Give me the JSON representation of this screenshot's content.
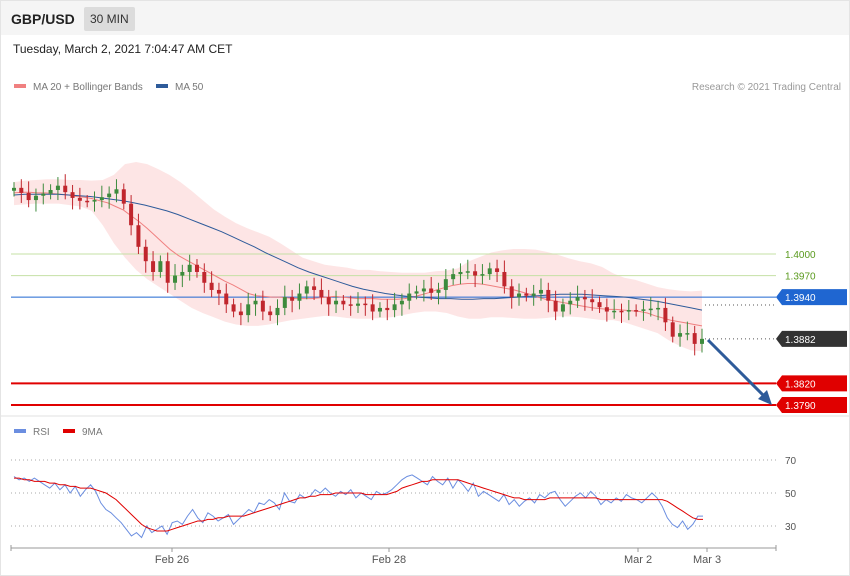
{
  "header": {
    "pair": "GBP/USD",
    "timeframe": "30 MIN"
  },
  "datetime": "Tuesday, March 2, 2021 7:04:47 AM CET",
  "legend": {
    "ma20_bb": "MA 20 + Bollinger Bands",
    "ma50": "MA 50",
    "credit": "Research © 2021 Trading Central"
  },
  "rsi_legend": {
    "rsi": "RSI",
    "ma9": "9MA"
  },
  "colors": {
    "bull": "#3d8b3d",
    "bear": "#c0262d",
    "ma20": "#f08080",
    "band": "#fde2e2",
    "ma50": "#2e5b9a",
    "level_green": "#c5e0a5",
    "level_blue": "#1f66d1",
    "level_red": "#e00000",
    "current": "#333333",
    "arrow": "#2e5b9a",
    "rsi": "#6b8ee0",
    "rsi_ma": "#e00000"
  },
  "chart_data": [
    {
      "type": "candlestick",
      "title": "GBP/USD",
      "xlabel": "",
      "ylabel": "",
      "ylim": [
        1.3745,
        1.4145
      ],
      "x_ticks": [
        "Feb 26",
        "Feb 28",
        "Mar 2",
        "Mar 3"
      ],
      "grid": false,
      "levels": [
        {
          "value": 1.4,
          "label": "1.4000",
          "kind": "resistance"
        },
        {
          "value": 1.397,
          "label": "1.3970",
          "kind": "resistance"
        },
        {
          "value": 1.394,
          "label": "1.3940",
          "kind": "pivot"
        },
        {
          "value": 1.3882,
          "label": "1.3882",
          "kind": "current"
        },
        {
          "value": 1.382,
          "label": "1.3820",
          "kind": "support"
        },
        {
          "value": 1.379,
          "label": "1.3790",
          "kind": "support"
        }
      ],
      "close": [
        1.4092,
        1.4085,
        1.4075,
        1.4081,
        1.4084,
        1.4089,
        1.4095,
        1.4086,
        1.4078,
        1.4074,
        1.4073,
        1.4075,
        1.4079,
        1.4084,
        1.409,
        1.407,
        1.404,
        1.401,
        1.399,
        1.3975,
        1.399,
        1.396,
        1.397,
        1.3975,
        1.3985,
        1.3975,
        1.396,
        1.395,
        1.3945,
        1.393,
        1.392,
        1.3915,
        1.393,
        1.3935,
        1.392,
        1.3915,
        1.3925,
        1.394,
        1.3935,
        1.3945,
        1.3955,
        1.395,
        1.394,
        1.393,
        1.3935,
        1.393,
        1.3928,
        1.3931,
        1.393,
        1.392,
        1.3925,
        1.3922,
        1.393,
        1.3935,
        1.3945,
        1.3948,
        1.3952,
        1.3946,
        1.395,
        1.3965,
        1.3972,
        1.3975,
        1.3976,
        1.397,
        1.3972,
        1.398,
        1.3975,
        1.3955,
        1.394,
        1.3945,
        1.3942,
        1.3945,
        1.395,
        1.3935,
        1.392,
        1.393,
        1.3935,
        1.394,
        1.3937,
        1.3933,
        1.3926,
        1.392,
        1.3921,
        1.392,
        1.3922,
        1.3921,
        1.3923,
        1.3924,
        1.3925,
        1.3905,
        1.3885,
        1.389,
        1.389,
        1.3875,
        1.3882
      ],
      "ma20": [
        1.4085,
        1.4086,
        1.4086,
        1.4085,
        1.4085,
        1.4084,
        1.4083,
        1.4082,
        1.408,
        1.4079,
        1.4077,
        1.4074,
        1.4071,
        1.4066,
        1.4061,
        1.4053,
        1.4045,
        1.4036,
        1.4026,
        1.4016,
        1.4006,
        1.3998,
        1.3992,
        1.3986,
        1.398,
        1.3974,
        1.3968,
        1.3962,
        1.3957,
        1.3951,
        1.3945,
        1.3942,
        1.3941,
        1.394,
        1.394,
        1.3939,
        1.3938,
        1.3938,
        1.3938,
        1.3939,
        1.394,
        1.3941,
        1.394,
        1.3939,
        1.3938,
        1.3938,
        1.3938,
        1.3937,
        1.3937,
        1.3937,
        1.3938,
        1.394,
        1.3943,
        1.3946,
        1.395,
        1.3953,
        1.3956,
        1.3958,
        1.3959,
        1.3959,
        1.3958,
        1.3956,
        1.3954,
        1.3952,
        1.395,
        1.3947,
        1.3944,
        1.394,
        1.3937,
        1.3935,
        1.3933,
        1.3931,
        1.3929,
        1.3927,
        1.3925,
        1.3924,
        1.3923,
        1.3923,
        1.3922,
        1.3921,
        1.392,
        1.3918,
        1.3914,
        1.3911,
        1.3908,
        1.3906,
        1.3904,
        1.3902,
        1.39
      ],
      "ma50": [
        1.4082,
        1.4083,
        1.4083,
        1.4083,
        1.4083,
        1.4082,
        1.4081,
        1.408,
        1.4078,
        1.4076,
        1.4074,
        1.4071,
        1.4068,
        1.4064,
        1.406,
        1.4055,
        1.4049,
        1.4043,
        1.4037,
        1.4031,
        1.4024,
        1.4017,
        1.401,
        1.4002,
        1.3995,
        1.3988,
        1.3981,
        1.3975,
        1.397,
        1.3965,
        1.396,
        1.3955,
        1.3951,
        1.3948,
        1.3945,
        1.3943,
        1.3941,
        1.394,
        1.3939,
        1.3938,
        1.3938,
        1.3937,
        1.3937,
        1.3938,
        1.3938,
        1.3939,
        1.394,
        1.3941,
        1.3942,
        1.3943,
        1.3944,
        1.3944,
        1.3944,
        1.3943,
        1.3942,
        1.3941,
        1.394,
        1.3938,
        1.3936,
        1.3934,
        1.3931,
        1.3928,
        1.3925,
        1.3922
      ],
      "bb_upper": [
        1.41,
        1.4102,
        1.4103,
        1.4104,
        1.4104,
        1.4103,
        1.4103,
        1.4102,
        1.4103,
        1.411,
        1.4125,
        1.4128,
        1.4125,
        1.4118,
        1.411,
        1.41,
        1.4088,
        1.4075,
        1.4062,
        1.4052,
        1.4043,
        1.4036,
        1.403,
        1.4024,
        1.4015,
        1.4005,
        1.3995,
        1.399,
        1.3985,
        1.3983,
        1.3981,
        1.3978,
        1.3978,
        1.3976,
        1.3975,
        1.3974,
        1.3974,
        1.3974,
        1.3976,
        1.3977,
        1.398,
        1.399,
        1.3996,
        1.4002,
        1.4005,
        1.4007,
        1.4007,
        1.4006,
        1.4003,
        1.3999,
        1.3994,
        1.399,
        1.3987,
        1.3982,
        1.3973,
        1.3967,
        1.3964,
        1.3959,
        1.3954,
        1.3951,
        1.3949,
        1.3948,
        1.3949
      ],
      "bb_lower": [
        1.4068,
        1.4069,
        1.407,
        1.407,
        1.407,
        1.4068,
        1.4066,
        1.406,
        1.404,
        1.4015,
        1.3995,
        1.3978,
        1.3965,
        1.3955,
        1.3945,
        1.3935,
        1.3925,
        1.3918,
        1.3912,
        1.3906,
        1.3902,
        1.39,
        1.39,
        1.3902,
        1.3905,
        1.3908,
        1.391,
        1.3912,
        1.3914,
        1.3913,
        1.3911,
        1.391,
        1.391,
        1.3911,
        1.3912,
        1.3915,
        1.3918,
        1.392,
        1.392,
        1.3918,
        1.3913,
        1.391,
        1.391,
        1.3912,
        1.3912,
        1.3911,
        1.391,
        1.391,
        1.3911,
        1.3913,
        1.3913,
        1.3912,
        1.391,
        1.3908,
        1.3908,
        1.3905,
        1.39,
        1.3895,
        1.389,
        1.388,
        1.3872,
        1.3866,
        1.3865
      ]
    },
    {
      "type": "line",
      "title": "RSI",
      "xlabel": "",
      "ylabel": "",
      "ylim": [
        17,
        80
      ],
      "y_ticks": [
        70,
        50,
        30
      ],
      "grid": true,
      "series": [
        {
          "name": "RSI",
          "values": [
            60,
            58,
            59,
            57,
            59,
            57,
            55,
            53,
            56,
            52,
            55,
            50,
            54,
            48,
            52,
            55,
            51,
            44,
            40,
            38,
            35,
            32,
            28,
            24,
            26,
            23,
            30,
            26,
            28,
            30,
            25,
            32,
            33,
            31,
            36,
            40,
            35,
            32,
            38,
            36,
            33,
            35,
            37,
            31,
            34,
            37,
            40,
            38,
            44,
            43,
            46,
            44,
            40,
            50,
            45,
            44,
            49,
            47,
            48,
            52,
            50,
            53,
            50,
            48,
            51,
            49,
            52,
            47,
            50,
            48,
            46,
            51,
            49,
            50,
            52,
            55,
            58,
            60,
            61,
            59,
            57,
            55,
            60,
            57,
            55,
            59,
            53,
            58,
            55,
            51,
            56,
            48,
            51,
            49,
            47,
            45,
            49,
            43,
            46,
            42,
            45,
            47,
            44,
            49,
            47,
            50,
            51,
            46,
            42,
            45,
            48,
            50,
            47,
            51,
            48,
            43,
            46,
            44,
            47,
            45,
            49,
            47,
            46,
            44,
            47,
            50,
            47,
            42,
            35,
            31,
            29,
            33,
            28,
            31,
            36,
            36
          ]
        },
        {
          "name": "9MA",
          "values": [
            59,
            59,
            58,
            58,
            57,
            57,
            57,
            56,
            56,
            55,
            55,
            54,
            54,
            53,
            53,
            53,
            52,
            51,
            50,
            48,
            46,
            43,
            40,
            37,
            34,
            31,
            29,
            28,
            27,
            27,
            27,
            28,
            29,
            30,
            31,
            32,
            33,
            33,
            34,
            34,
            35,
            35,
            36,
            36,
            36,
            36,
            37,
            38,
            39,
            40,
            41,
            42,
            43,
            44,
            45,
            46,
            47,
            47,
            48,
            48,
            49,
            49,
            49,
            50,
            50,
            50,
            50,
            50,
            50,
            49,
            49,
            49,
            49,
            49,
            50,
            51,
            53,
            54,
            55,
            56,
            57,
            57,
            58,
            58,
            58,
            58,
            58,
            58,
            57,
            56,
            55,
            54,
            53,
            52,
            51,
            50,
            49,
            48,
            47,
            47,
            46,
            46,
            46,
            46,
            46,
            47,
            47,
            47,
            47,
            47,
            47,
            47,
            47,
            47,
            47,
            46,
            46,
            46,
            46,
            46,
            46,
            46,
            46,
            46,
            46,
            46,
            46,
            46,
            45,
            43,
            41,
            39,
            37,
            35,
            34,
            34
          ]
        }
      ]
    }
  ]
}
